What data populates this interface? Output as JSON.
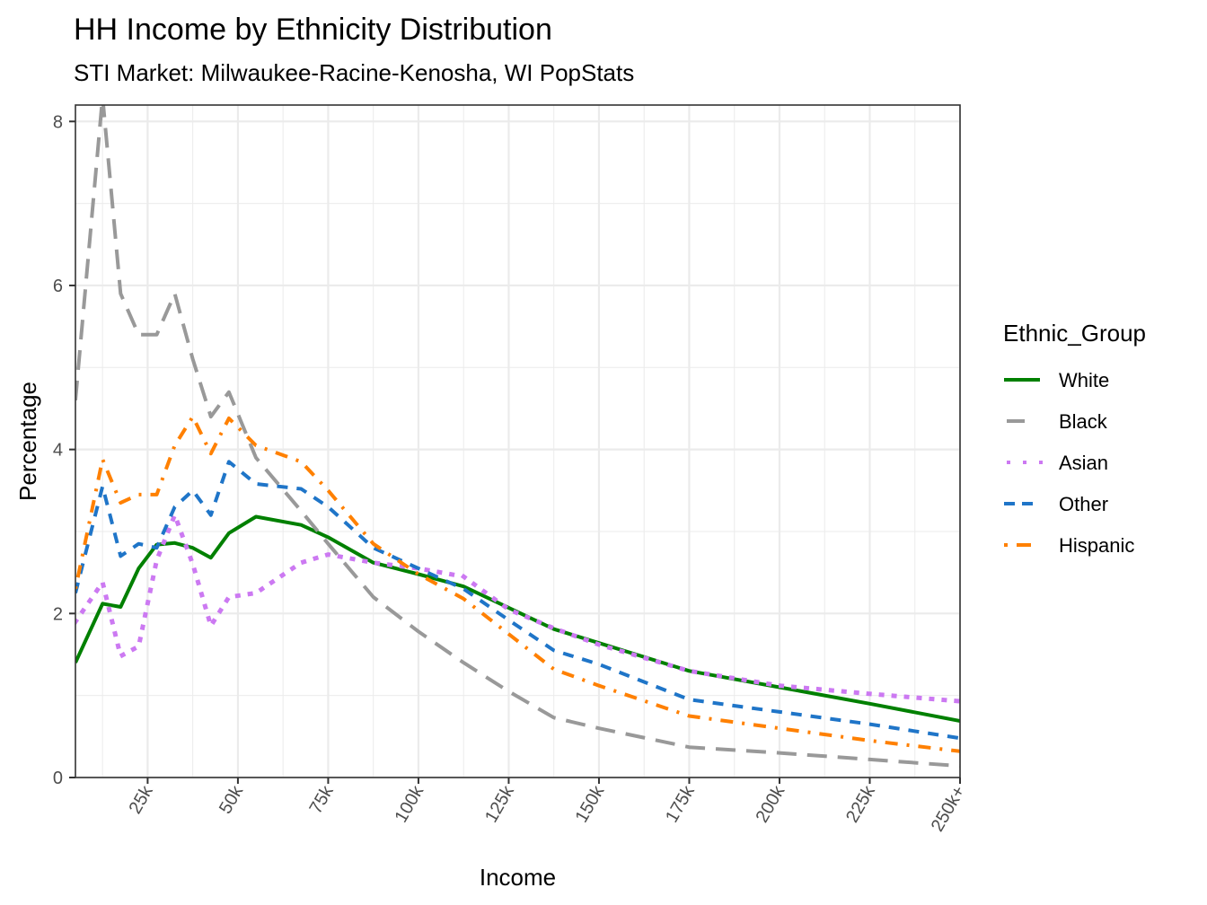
{
  "chart_data": {
    "type": "line",
    "title": "HH Income by Ethnicity Distribution",
    "subtitle": "STI Market: Milwaukee-Racine-Kenosha, WI PopStats",
    "xlabel": "Income",
    "ylabel": "Percentage",
    "xlim": [
      5,
      250
    ],
    "ylim": [
      0,
      8.2
    ],
    "x_unit": "k",
    "x_ticks": [
      25,
      50,
      75,
      100,
      125,
      150,
      175,
      200,
      225,
      250
    ],
    "x_tick_labels": [
      "25k",
      "50k",
      "75k",
      "100k",
      "125k",
      "150k",
      "175k",
      "200k",
      "225k",
      "250k+"
    ],
    "y_ticks": [
      0,
      2,
      4,
      6,
      8
    ],
    "y_tick_labels": [
      "0",
      "2",
      "4",
      "6",
      "8"
    ],
    "grid": true,
    "legend": {
      "title": "Ethnic_Group",
      "position": "right"
    },
    "x": [
      5,
      12.5,
      17.5,
      22.5,
      27.5,
      32.5,
      37.5,
      42.5,
      47.5,
      55,
      67.5,
      75,
      87.5,
      100,
      112.5,
      125,
      137.5,
      150,
      175,
      200,
      225,
      250
    ],
    "series": [
      {
        "name": "White",
        "color": "#008000",
        "dash": "solid",
        "values": [
          1.4,
          2.12,
          2.08,
          2.55,
          2.84,
          2.86,
          2.8,
          2.68,
          2.98,
          3.18,
          3.08,
          2.93,
          2.62,
          2.48,
          2.33,
          2.07,
          1.81,
          1.64,
          1.3,
          1.1,
          0.9,
          0.69
        ]
      },
      {
        "name": "Black",
        "color": "#999999",
        "dash": "longdash",
        "values": [
          4.6,
          8.3,
          5.9,
          5.4,
          5.4,
          5.9,
          5.1,
          4.4,
          4.7,
          3.9,
          3.25,
          2.85,
          2.2,
          1.78,
          1.4,
          1.05,
          0.73,
          0.6,
          0.37,
          0.3,
          0.22,
          0.14
        ]
      },
      {
        "name": "Asian",
        "color": "#CC79F2",
        "dash": "dotted",
        "values": [
          1.9,
          2.38,
          1.48,
          1.6,
          2.65,
          3.2,
          2.6,
          1.85,
          2.2,
          2.25,
          2.62,
          2.72,
          2.62,
          2.55,
          2.45,
          2.05,
          1.82,
          1.62,
          1.3,
          1.12,
          1.02,
          0.93
        ]
      },
      {
        "name": "Other",
        "color": "#1F75C8",
        "dash": "dashed",
        "values": [
          2.25,
          3.55,
          2.7,
          2.85,
          2.8,
          3.3,
          3.5,
          3.2,
          3.85,
          3.58,
          3.52,
          3.3,
          2.8,
          2.55,
          2.3,
          1.92,
          1.55,
          1.38,
          0.95,
          0.8,
          0.65,
          0.48
        ]
      },
      {
        "name": "Hispanic",
        "color": "#FF8000",
        "dash": "dotdash",
        "values": [
          2.3,
          3.88,
          3.35,
          3.45,
          3.45,
          4.05,
          4.4,
          3.95,
          4.38,
          4.05,
          3.85,
          3.5,
          2.85,
          2.48,
          2.18,
          1.75,
          1.32,
          1.12,
          0.75,
          0.6,
          0.45,
          0.32
        ]
      }
    ]
  }
}
